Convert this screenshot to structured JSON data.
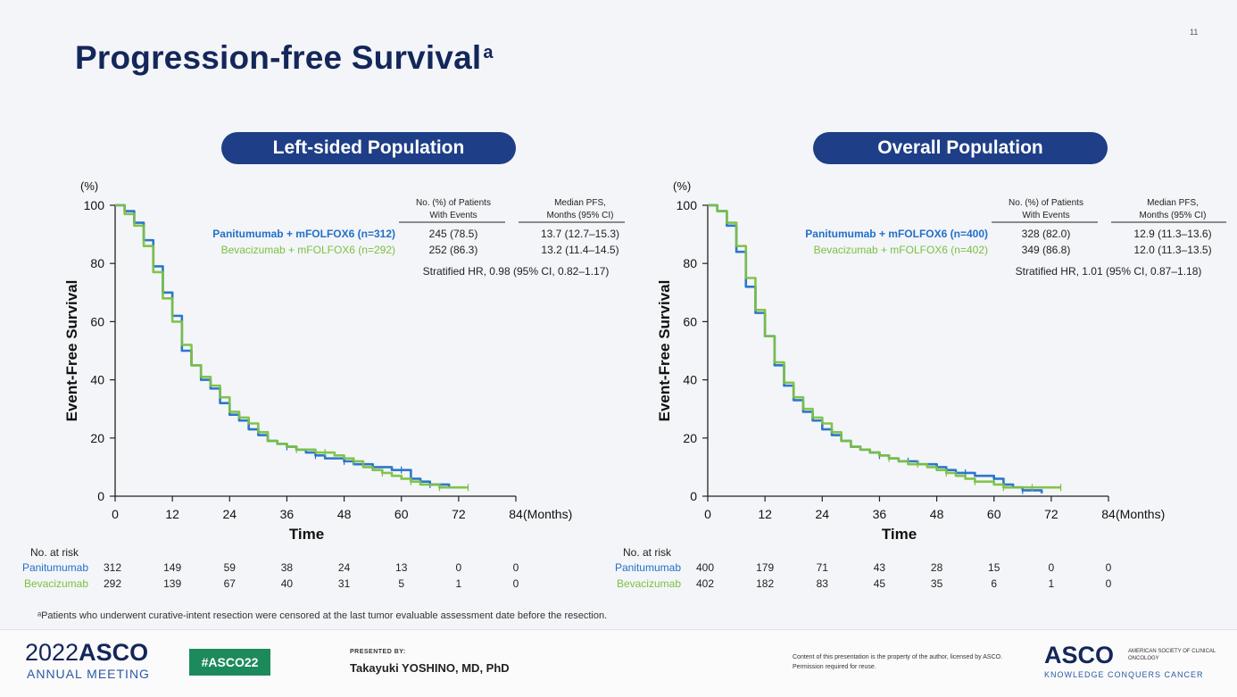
{
  "slide_number": "11",
  "title": "Progression-free Survival",
  "title_sup": "a",
  "colors": {
    "panitumumab": "#2270c8",
    "bevacizumab": "#7ac143",
    "navy": "#14275a",
    "pill": "#1e3f87"
  },
  "chart_data": [
    {
      "id": "left",
      "type": "line",
      "title": "Left-sided Population",
      "ylabel": "Event-Free Survival",
      "yunit": "(%)",
      "xlabel": "Time",
      "xunit": "(Months)",
      "xlim": [
        0,
        84
      ],
      "ylim": [
        0,
        100
      ],
      "xticks": [
        0,
        12,
        24,
        36,
        48,
        60,
        72,
        84
      ],
      "yticks": [
        0,
        20,
        40,
        60,
        80,
        100
      ],
      "table_header": [
        "No. (%) of Patients",
        "With Events",
        "Median PFS,",
        "Months (95% CI)"
      ],
      "series": [
        {
          "name": "Panitumumab + mFOLFOX6 (n=312)",
          "events": "245 (78.5)",
          "median": "13.7 (12.7–15.3)",
          "x": [
            0,
            2,
            4,
            6,
            8,
            10,
            12,
            14,
            16,
            18,
            20,
            22,
            24,
            26,
            28,
            30,
            32,
            34,
            36,
            38,
            40,
            42,
            44,
            46,
            48,
            50,
            52,
            54,
            56,
            58,
            60,
            62,
            64,
            66,
            68,
            70
          ],
          "y": [
            100,
            98,
            94,
            88,
            79,
            70,
            62,
            50,
            45,
            40,
            37,
            32,
            28,
            26,
            23,
            21,
            19,
            18,
            17,
            16,
            15,
            14,
            13,
            13,
            12,
            11,
            11,
            10,
            10,
            9,
            9,
            6,
            5,
            4,
            4,
            3
          ]
        },
        {
          "name": "Bevacizumab + mFOLFOX6 (n=292)",
          "events": "252 (86.3)",
          "median": "13.2 (11.4–14.5)",
          "x": [
            0,
            2,
            4,
            6,
            8,
            10,
            12,
            14,
            16,
            18,
            20,
            22,
            24,
            26,
            28,
            30,
            32,
            34,
            36,
            38,
            40,
            42,
            44,
            46,
            48,
            50,
            52,
            54,
            56,
            58,
            60,
            62,
            64,
            66,
            68,
            70,
            72,
            74
          ],
          "y": [
            100,
            97,
            93,
            86,
            77,
            68,
            60,
            52,
            45,
            41,
            38,
            34,
            29,
            27,
            25,
            22,
            19,
            18,
            17,
            16,
            16,
            15,
            15,
            14,
            13,
            12,
            10,
            9,
            8,
            7,
            6,
            5,
            4,
            4,
            3,
            3,
            3,
            3
          ]
        }
      ],
      "hr": "Stratified HR, 0.98 (95% CI, 0.82–1.17)",
      "risk_label": "No. at risk",
      "risk": [
        {
          "name": "Panitumumab",
          "values": [
            "312",
            "149",
            "59",
            "38",
            "24",
            "13",
            "0",
            "0"
          ]
        },
        {
          "name": "Bevacizumab",
          "values": [
            "292",
            "139",
            "67",
            "40",
            "31",
            "5",
            "1",
            "0"
          ]
        }
      ]
    },
    {
      "id": "right",
      "type": "line",
      "title": "Overall Population",
      "ylabel": "Event-Free Survival",
      "yunit": "(%)",
      "xlabel": "Time",
      "xunit": "(Months)",
      "xlim": [
        0,
        84
      ],
      "ylim": [
        0,
        100
      ],
      "xticks": [
        0,
        12,
        24,
        36,
        48,
        60,
        72,
        84
      ],
      "yticks": [
        0,
        20,
        40,
        60,
        80,
        100
      ],
      "table_header": [
        "No. (%) of Patients",
        "With Events",
        "Median PFS,",
        "Months (95% CI)"
      ],
      "series": [
        {
          "name": "Panitumumab + mFOLFOX6 (n=400)",
          "events": "328 (82.0)",
          "median": "12.9 (11.3–13.6)",
          "x": [
            0,
            2,
            4,
            6,
            8,
            10,
            12,
            14,
            16,
            18,
            20,
            22,
            24,
            26,
            28,
            30,
            32,
            34,
            36,
            38,
            40,
            42,
            44,
            46,
            48,
            50,
            52,
            54,
            56,
            58,
            60,
            62,
            64,
            66,
            68,
            70
          ],
          "y": [
            100,
            98,
            93,
            84,
            72,
            63,
            55,
            45,
            38,
            33,
            29,
            26,
            23,
            21,
            19,
            17,
            16,
            15,
            14,
            13,
            12,
            12,
            11,
            11,
            10,
            9,
            8,
            8,
            7,
            7,
            6,
            4,
            3,
            2,
            2,
            1
          ]
        },
        {
          "name": "Bevacizumab + mFOLFOX6 (n=402)",
          "events": "349 (86.8)",
          "median": "12.0 (11.3–13.5)",
          "x": [
            0,
            2,
            4,
            6,
            8,
            10,
            12,
            14,
            16,
            18,
            20,
            22,
            24,
            26,
            28,
            30,
            32,
            34,
            36,
            38,
            40,
            42,
            44,
            46,
            48,
            50,
            52,
            54,
            56,
            58,
            60,
            62,
            64,
            66,
            68,
            70,
            72,
            74
          ],
          "y": [
            100,
            98,
            94,
            86,
            75,
            64,
            55,
            46,
            39,
            34,
            30,
            27,
            25,
            22,
            19,
            17,
            16,
            15,
            14,
            13,
            12,
            11,
            11,
            10,
            9,
            8,
            7,
            6,
            5,
            5,
            4,
            3,
            3,
            3,
            3,
            3,
            3,
            3
          ]
        }
      ],
      "hr": "Stratified HR, 1.01 (95% CI, 0.87–1.18)",
      "risk_label": "No. at risk",
      "risk": [
        {
          "name": "Panitumumab",
          "values": [
            "400",
            "179",
            "71",
            "43",
            "28",
            "15",
            "0",
            "0"
          ]
        },
        {
          "name": "Bevacizumab",
          "values": [
            "402",
            "182",
            "83",
            "45",
            "35",
            "6",
            "1",
            "0"
          ]
        }
      ]
    }
  ],
  "footnote": "ᵃPatients who underwent curative-intent resection were censored at the last tumor evaluable assessment date before the resection.",
  "footer": {
    "year": "2022",
    "asco": "ASCO",
    "annual_meeting": "ANNUAL MEETING",
    "hashtag": "#ASCO22",
    "presented_by": "PRESENTED BY:",
    "presenter": "Takayuki YOSHINO, MD, PhD",
    "copyright": "Content of this presentation is the property of the author, licensed by ASCO. Permission required for reuse.",
    "logo": "ASCO",
    "society": "AMERICAN SOCIETY OF CLINICAL ONCOLOGY",
    "tagline": "KNOWLEDGE CONQUERS CANCER"
  }
}
